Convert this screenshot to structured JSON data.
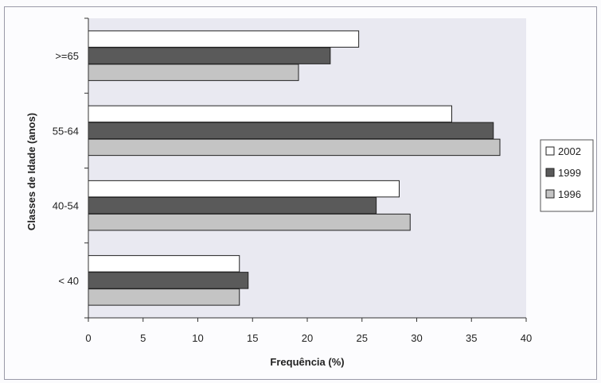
{
  "chart_data": {
    "type": "bar",
    "orientation": "horizontal",
    "categories": [
      ">=65",
      "55-64",
      "40-54",
      "< 40"
    ],
    "series": [
      {
        "name": "2002",
        "color": "#ffffff",
        "values": [
          24.7,
          33.2,
          28.4,
          13.8
        ]
      },
      {
        "name": "1999",
        "color": "#5a5a5a",
        "values": [
          22.1,
          37.0,
          26.3,
          14.6
        ]
      },
      {
        "name": "1996",
        "color": "#c4c4c4",
        "values": [
          19.2,
          37.6,
          29.4,
          13.8
        ]
      }
    ],
    "xlabel": "Frequência (%)",
    "ylabel": "Classes de Idade (anos)",
    "xlim": [
      0,
      40
    ],
    "xticks": [
      "0",
      "5",
      "10",
      "15",
      "20",
      "25",
      "30",
      "35",
      "40"
    ],
    "plot_background": "#e9e9f1",
    "grid": false,
    "legend": "right"
  }
}
